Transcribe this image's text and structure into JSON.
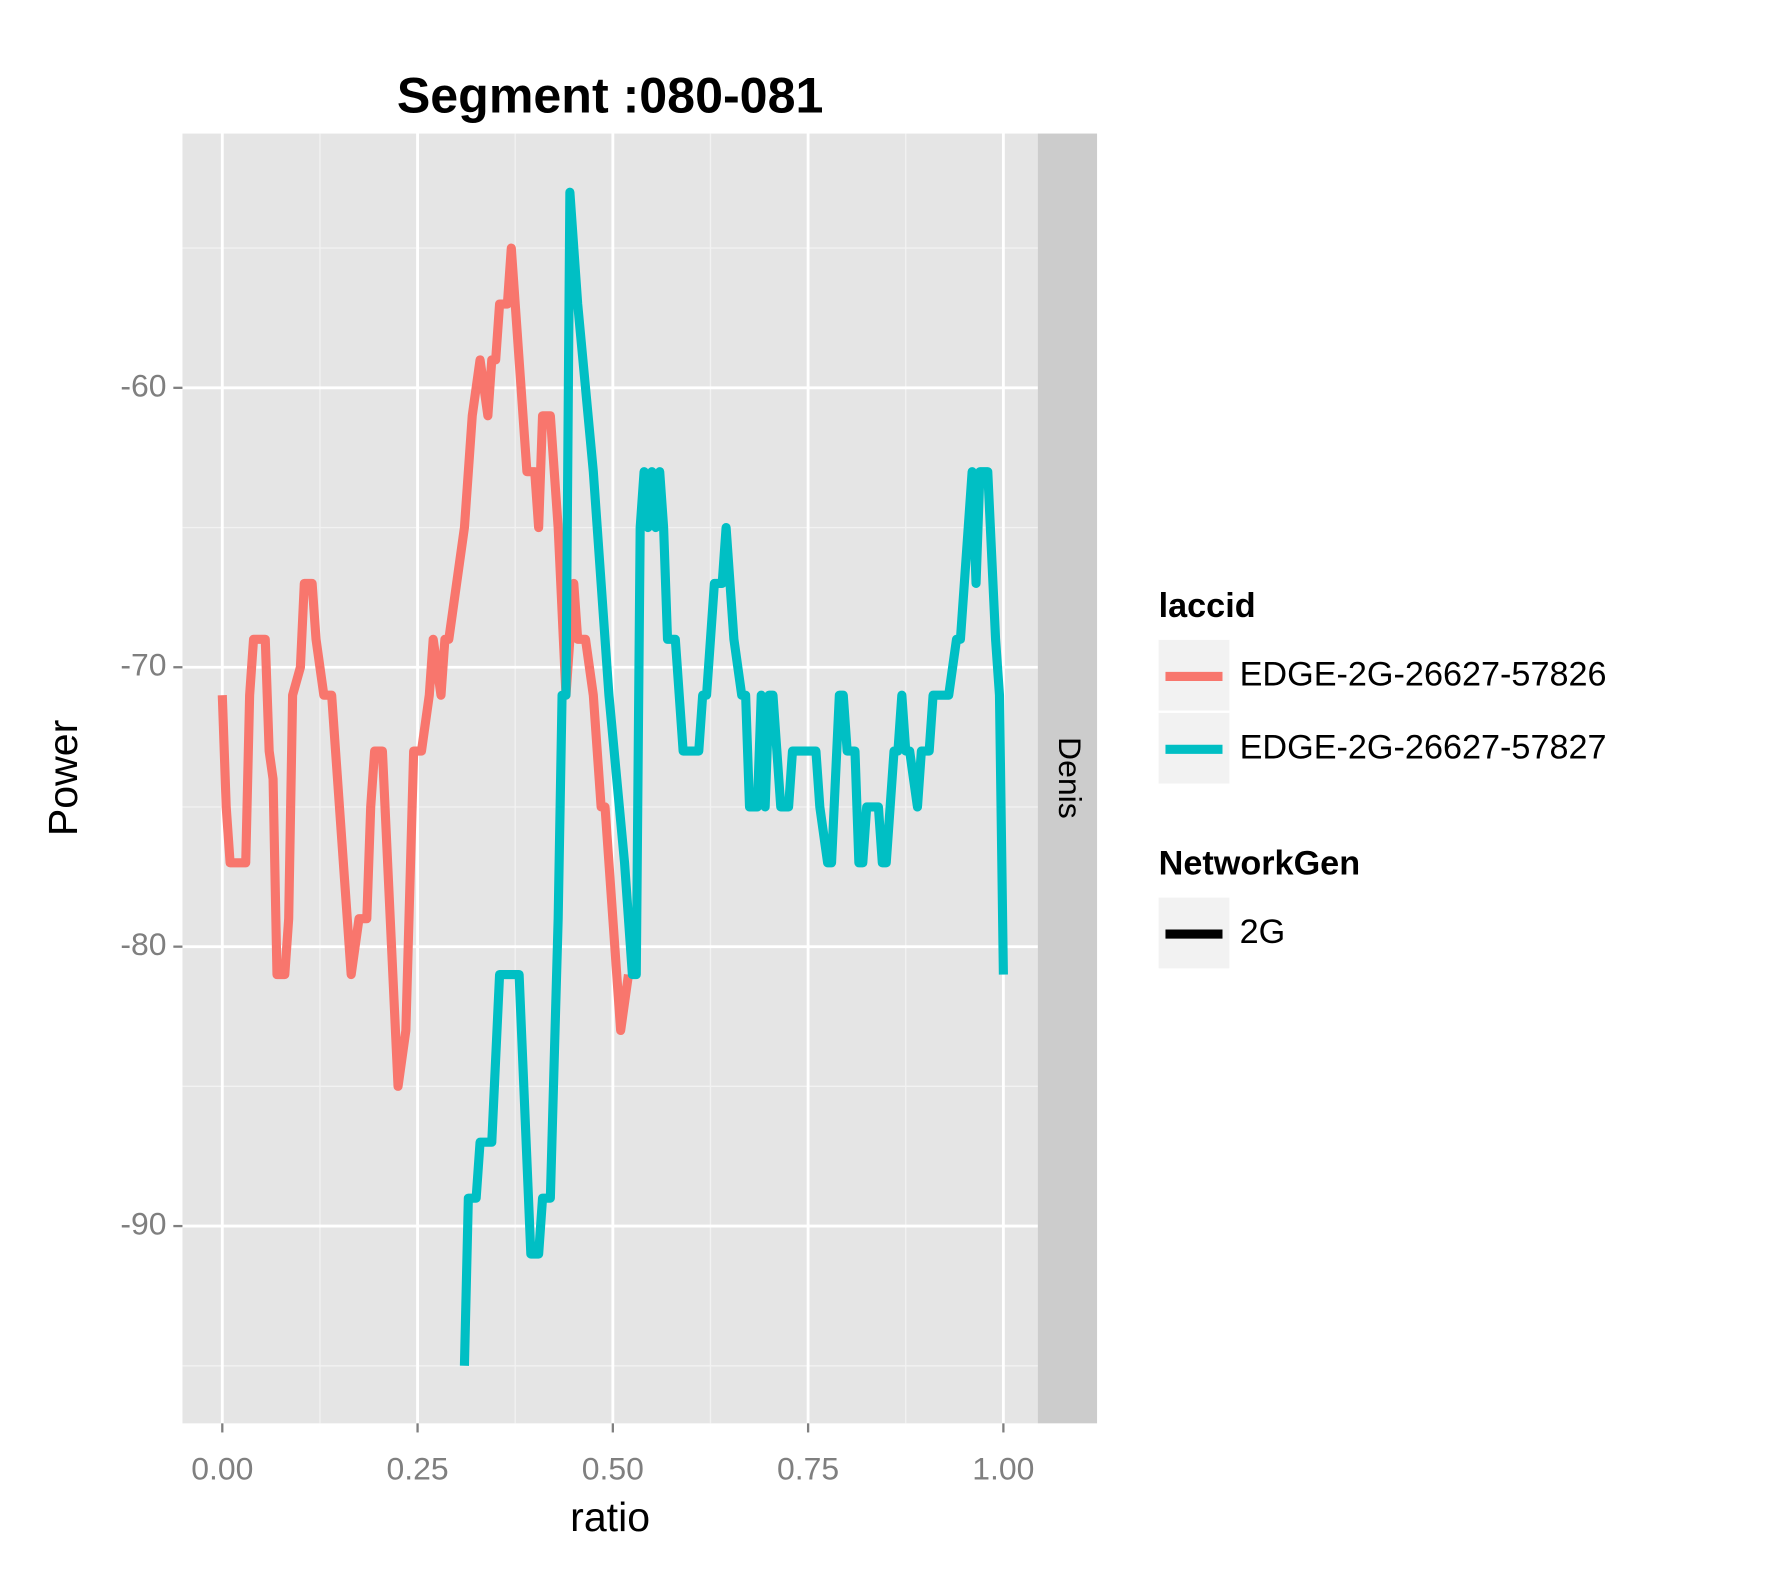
{
  "chart_data": {
    "type": "line",
    "title": "Segment :080-081",
    "x_label": "ratio",
    "y_label": "Power",
    "facet": "Denis",
    "xlim": [
      -0.051,
      1.044
    ],
    "ylim": [
      -97.06,
      -50.9
    ],
    "xticks": [
      {
        "value": 0,
        "label": "0.00"
      },
      {
        "value": 0.25,
        "label": "0.25"
      },
      {
        "value": 0.5,
        "label": "0.50"
      },
      {
        "value": 0.75,
        "label": "0.75"
      },
      {
        "value": 1,
        "label": "1.00"
      }
    ],
    "yticks": [
      -90,
      -80,
      -70,
      -60
    ],
    "grid": true,
    "legend_title": "laccid",
    "linetype_legend": {
      "title": "NetworkGen",
      "labels": [
        "2G"
      ],
      "color": "#000000"
    },
    "series": [
      {
        "name": "EDGE-2G-26627-57826",
        "color": "#F8766D",
        "x": [
          0,
          0.005,
          0.01,
          0.03,
          0.035,
          0.04,
          0.055,
          0.06,
          0.065,
          0.07,
          0.08,
          0.085,
          0.09,
          0.1,
          0.105,
          0.115,
          0.12,
          0.13,
          0.14,
          0.15,
          0.165,
          0.175,
          0.185,
          0.19,
          0.195,
          0.205,
          0.215,
          0.225,
          0.235,
          0.245,
          0.255,
          0.265,
          0.27,
          0.28,
          0.285,
          0.29,
          0.3,
          0.31,
          0.315,
          0.32,
          0.33,
          0.34,
          0.345,
          0.35,
          0.355,
          0.365,
          0.37,
          0.375,
          0.38,
          0.39,
          0.4,
          0.405,
          0.41,
          0.42,
          0.43,
          0.44,
          0.45,
          0.455,
          0.465,
          0.475,
          0.485,
          0.49,
          0.5,
          0.51,
          0.52
        ],
        "values": [
          -71,
          -75,
          -77,
          -77,
          -71,
          -69,
          -69,
          -73,
          -74,
          -81,
          -81,
          -79,
          -71,
          -70,
          -67,
          -67,
          -69,
          -71,
          -71,
          -75,
          -81,
          -79,
          -79,
          -75,
          -73,
          -73,
          -79,
          -85,
          -83,
          -73,
          -73,
          -71,
          -69,
          -71,
          -69,
          -69,
          -67,
          -65,
          -63,
          -61,
          -59,
          -61,
          -59,
          -59,
          -57,
          -57,
          -55,
          -57,
          -59,
          -63,
          -63,
          -65,
          -61,
          -61,
          -65,
          -71,
          -67,
          -69,
          -69,
          -71,
          -75,
          -75,
          -79,
          -83,
          -81
        ]
      },
      {
        "name": "EDGE-2G-26627-57827",
        "color": "#00BFC4",
        "x": [
          0.31,
          0.315,
          0.325,
          0.33,
          0.345,
          0.355,
          0.38,
          0.395,
          0.405,
          0.41,
          0.42,
          0.43,
          0.435,
          0.44,
          0.445,
          0.455,
          0.475,
          0.485,
          0.495,
          0.515,
          0.525,
          0.53,
          0.535,
          0.54,
          0.545,
          0.55,
          0.555,
          0.56,
          0.565,
          0.57,
          0.58,
          0.59,
          0.61,
          0.615,
          0.62,
          0.63,
          0.64,
          0.645,
          0.655,
          0.665,
          0.67,
          0.675,
          0.685,
          0.69,
          0.695,
          0.7,
          0.705,
          0.71,
          0.715,
          0.725,
          0.73,
          0.76,
          0.765,
          0.775,
          0.78,
          0.79,
          0.795,
          0.8,
          0.81,
          0.815,
          0.82,
          0.825,
          0.84,
          0.845,
          0.85,
          0.86,
          0.865,
          0.87,
          0.875,
          0.88,
          0.89,
          0.895,
          0.905,
          0.91,
          0.93,
          0.94,
          0.945,
          0.96,
          0.965,
          0.97,
          0.98,
          0.99,
          0.995,
          1.0
        ],
        "values": [
          -95,
          -89,
          -89,
          -87,
          -87,
          -81,
          -81,
          -91,
          -91,
          -89,
          -89,
          -79,
          -71,
          -71,
          -53,
          -57,
          -63,
          -67,
          -71,
          -77,
          -81,
          -81,
          -65,
          -63,
          -65,
          -63,
          -65,
          -63,
          -65,
          -69,
          -69,
          -73,
          -73,
          -71,
          -71,
          -67,
          -67,
          -65,
          -69,
          -71,
          -71,
          -75,
          -75,
          -71,
          -75,
          -71,
          -71,
          -73,
          -75,
          -75,
          -73,
          -73,
          -75,
          -77,
          -77,
          -71,
          -71,
          -73,
          -73,
          -77,
          -77,
          -75,
          -75,
          -77,
          -77,
          -73,
          -73,
          -71,
          -73,
          -73,
          -75,
          -73,
          -73,
          -71,
          -71,
          -69,
          -69,
          -63,
          -67,
          -63,
          -63,
          -69,
          -71,
          -81
        ]
      }
    ]
  }
}
